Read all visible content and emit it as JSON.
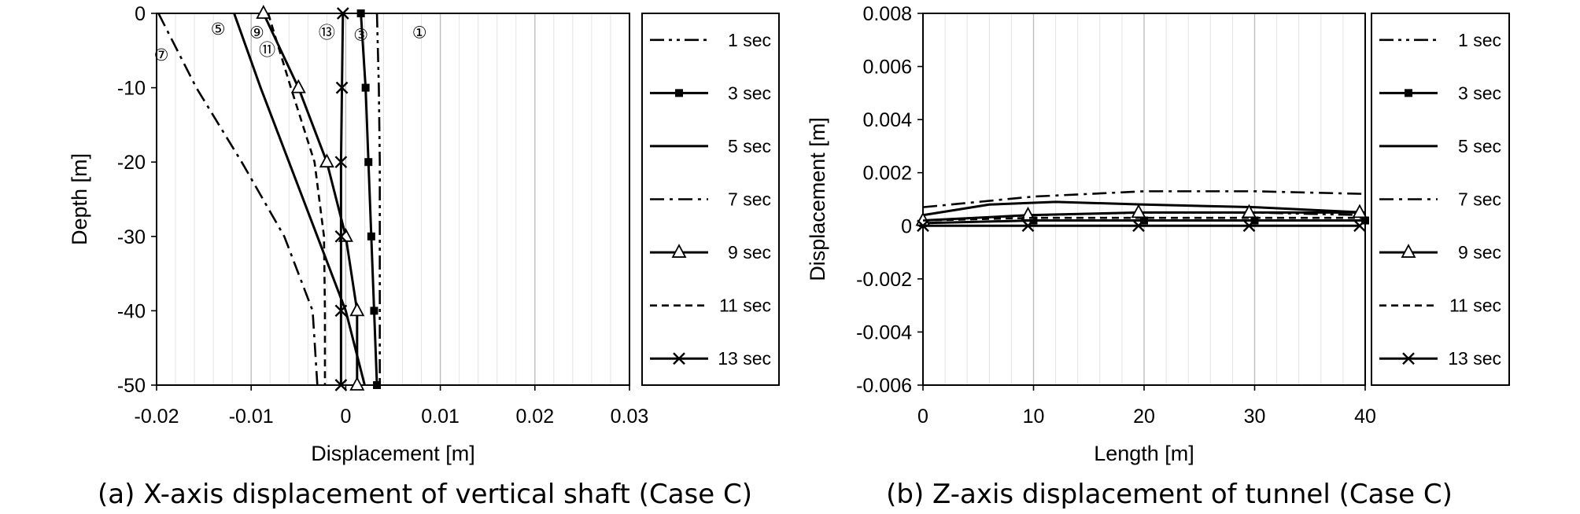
{
  "chart_data": [
    {
      "type": "line",
      "caption": "(a) X-axis displacement of vertical shaft (Case C)",
      "xlabel": "Displacement [m]",
      "ylabel": "Depth [m]",
      "xlim": [
        -0.02,
        0.03
      ],
      "ylim": [
        -50,
        0
      ],
      "x_ticks": [
        "-0.02",
        "-0.01",
        "0",
        "0.01",
        "0.02",
        "0.03"
      ],
      "y_ticks": [
        "0",
        "-10",
        "-20",
        "-30",
        "-40",
        "-50"
      ],
      "grid": "vertical",
      "legend_position": "right",
      "series": [
        {
          "name": "1 sec",
          "style": "dash-dot-dot",
          "marker": "none",
          "points": [
            [
              0.0033,
              0
            ],
            [
              0.0035,
              -10
            ],
            [
              0.0036,
              -20
            ],
            [
              0.0036,
              -30
            ],
            [
              0.0036,
              -40
            ],
            [
              0.0036,
              -50
            ]
          ]
        },
        {
          "name": "3 sec",
          "style": "solid",
          "marker": "square",
          "points": [
            [
              0.0016,
              0
            ],
            [
              0.0021,
              -10
            ],
            [
              0.0024,
              -20
            ],
            [
              0.0027,
              -30
            ],
            [
              0.003,
              -40
            ],
            [
              0.0033,
              -50
            ]
          ]
        },
        {
          "name": "5 sec",
          "style": "solid",
          "marker": "none",
          "points": [
            [
              -0.0118,
              0
            ],
            [
              -0.009,
              -10
            ],
            [
              -0.006,
              -20
            ],
            [
              -0.003,
              -30
            ],
            [
              0.0,
              -40
            ],
            [
              0.002,
              -50
            ]
          ]
        },
        {
          "name": "7 sec",
          "style": "dash-dot",
          "marker": "none",
          "points": [
            [
              -0.0198,
              0
            ],
            [
              -0.0158,
              -10
            ],
            [
              -0.011,
              -20
            ],
            [
              -0.0065,
              -30
            ],
            [
              -0.0035,
              -40
            ],
            [
              -0.003,
              -50
            ]
          ]
        },
        {
          "name": "9 sec",
          "style": "solid",
          "marker": "triangle",
          "points": [
            [
              -0.0087,
              0
            ],
            [
              -0.005,
              -10
            ],
            [
              -0.002,
              -20
            ],
            [
              0.0,
              -30
            ],
            [
              0.0012,
              -40
            ],
            [
              0.0012,
              -50
            ]
          ]
        },
        {
          "name": "11 sec",
          "style": "dashed",
          "marker": "none",
          "points": [
            [
              -0.0082,
              0
            ],
            [
              -0.0058,
              -10
            ],
            [
              -0.0033,
              -20
            ],
            [
              -0.0023,
              -30
            ],
            [
              -0.0022,
              -40
            ],
            [
              -0.0022,
              -50
            ]
          ]
        },
        {
          "name": "13 sec",
          "style": "solid",
          "marker": "x",
          "points": [
            [
              -0.0003,
              0
            ],
            [
              -0.0004,
              -10
            ],
            [
              -0.0005,
              -20
            ],
            [
              -0.0005,
              -30
            ],
            [
              -0.0005,
              -40
            ],
            [
              -0.0005,
              -50
            ]
          ]
        }
      ],
      "annotations": [
        {
          "text": "⑤",
          "x": -0.0135,
          "y": -2
        },
        {
          "text": "⑨",
          "x": -0.0094,
          "y": -2.5
        },
        {
          "text": "⑪",
          "x": -0.0083,
          "y": -4.8
        },
        {
          "text": "⑬",
          "x": -0.002,
          "y": -2.5
        },
        {
          "text": "③",
          "x": 0.0016,
          "y": -2.8
        },
        {
          "text": "①",
          "x": 0.0078,
          "y": -2.5
        },
        {
          "text": "⑦",
          "x": -0.0195,
          "y": -5.5
        }
      ]
    },
    {
      "type": "line",
      "caption": "(b) Z-axis displacement of tunnel (Case C)",
      "xlabel": "Length [m]",
      "ylabel": "Displacement [m]",
      "xlim": [
        0,
        40
      ],
      "ylim": [
        -0.006,
        0.008
      ],
      "x_ticks": [
        "0",
        "10",
        "20",
        "30",
        "40"
      ],
      "y_ticks": [
        "0.008",
        "0.006",
        "0.004",
        "0.002",
        "0",
        "-0.002",
        "-0.004",
        "-0.006"
      ],
      "grid": "vertical",
      "legend_position": "right",
      "series": [
        {
          "name": "1 sec",
          "style": "dash-dot-dot",
          "marker": "none",
          "points": [
            [
              0,
              0.0002
            ],
            [
              10,
              0.0004
            ],
            [
              20,
              0.0005
            ],
            [
              30,
              0.0005
            ],
            [
              40,
              0.0004
            ]
          ]
        },
        {
          "name": "3 sec",
          "style": "solid",
          "marker": "square",
          "points": [
            [
              0,
              0.0001
            ],
            [
              10,
              0.0002
            ],
            [
              20,
              0.0002
            ],
            [
              30,
              0.0002
            ],
            [
              40,
              0.0002
            ]
          ]
        },
        {
          "name": "5 sec",
          "style": "solid",
          "marker": "none",
          "points": [
            [
              0,
              0.0004
            ],
            [
              6,
              0.0008
            ],
            [
              12,
              0.0009
            ],
            [
              20,
              0.0008
            ],
            [
              30,
              0.0007
            ],
            [
              40,
              0.0005
            ]
          ]
        },
        {
          "name": "7 sec",
          "style": "dash-dot",
          "marker": "none",
          "points": [
            [
              0,
              0.0007
            ],
            [
              10,
              0.0011
            ],
            [
              20,
              0.0013
            ],
            [
              30,
              0.0013
            ],
            [
              40,
              0.0012
            ]
          ]
        },
        {
          "name": "9 sec",
          "style": "solid",
          "marker": "triangle",
          "points": [
            [
              0,
              0.0002
            ],
            [
              9.5,
              0.0004
            ],
            [
              19.5,
              0.0005
            ],
            [
              29.5,
              0.0005
            ],
            [
              39.5,
              0.0005
            ]
          ]
        },
        {
          "name": "11 sec",
          "style": "dashed",
          "marker": "none",
          "points": [
            [
              0,
              0.0002
            ],
            [
              10,
              0.0003
            ],
            [
              20,
              0.0003
            ],
            [
              30,
              0.0003
            ],
            [
              40,
              0.0003
            ]
          ]
        },
        {
          "name": "13 sec",
          "style": "solid",
          "marker": "x",
          "points": [
            [
              0,
              0.0
            ],
            [
              9.5,
              0.0
            ],
            [
              19.5,
              0.0
            ],
            [
              29.5,
              0.0
            ],
            [
              39.5,
              0.0
            ]
          ]
        }
      ]
    }
  ]
}
